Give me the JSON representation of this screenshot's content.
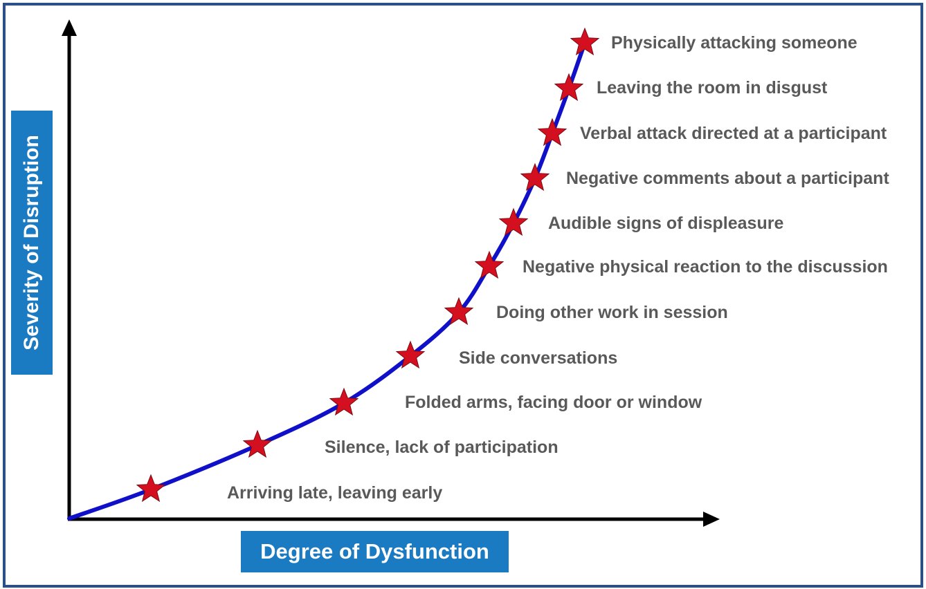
{
  "x_axis_label": "Degree of Dysfunction",
  "y_axis_label": "Severity of Disruption",
  "colors": {
    "curve": "#1010c8",
    "star": "#d41020",
    "label_box": "#1a7ac2",
    "text": "#595959",
    "frame": "#2b4f86"
  },
  "behaviors": [
    "Arriving late, leaving early",
    "Silence, lack of participation",
    "Folded arms, facing door or window",
    "Side conversations",
    "Doing other work in session",
    "Negative physical reaction to the discussion",
    "Audible signs of displeasure",
    "Negative comments about a participant",
    "Verbal attack directed at a participant",
    "Leaving the room in disgust",
    "Physically attacking someone"
  ]
}
